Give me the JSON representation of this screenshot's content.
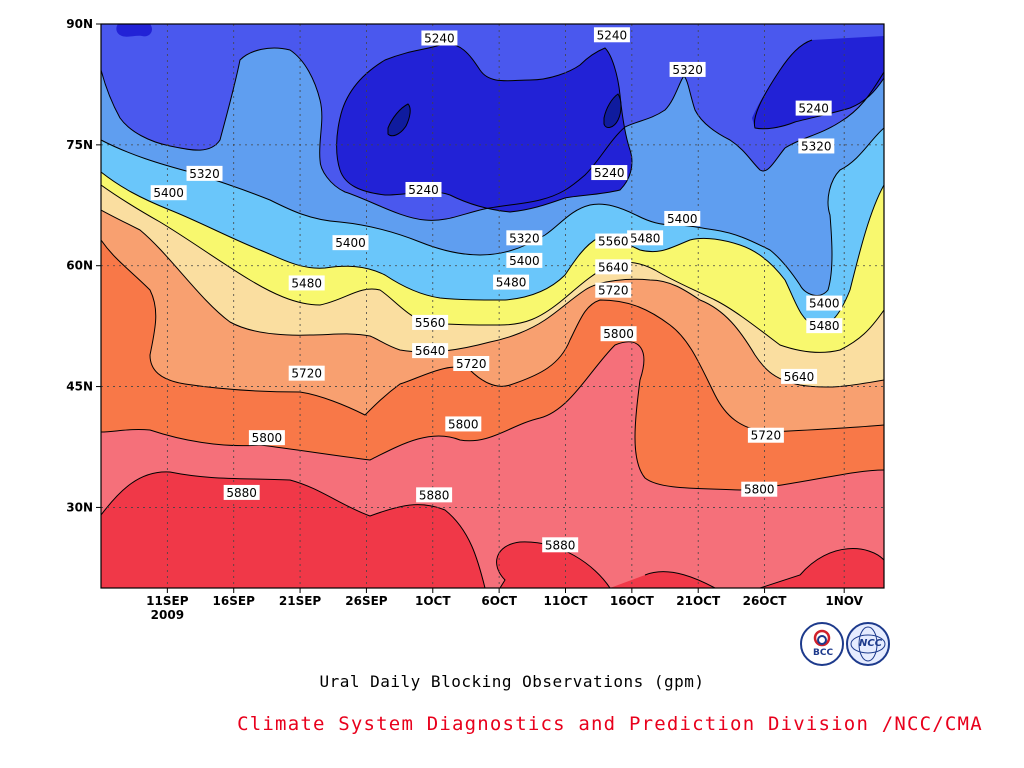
{
  "subtitle": "Ural Daily Blocking Observations (gpm)",
  "credit": "Climate System Diagnostics and Prediction Division /NCC/CMA",
  "logos": {
    "left_text": "BCC",
    "right_text": "NCC"
  },
  "chart_data": {
    "type": "heatmap",
    "title": "",
    "xlabel": "",
    "ylabel": "",
    "x_range_day": [
      0,
      59
    ],
    "y_range_lat": [
      20,
      90
    ],
    "x_ticks": [
      {
        "day": 5,
        "label": "11SEP",
        "sub": "2009"
      },
      {
        "day": 10,
        "label": "16SEP"
      },
      {
        "day": 15,
        "label": "21SEP"
      },
      {
        "day": 20,
        "label": "26SEP"
      },
      {
        "day": 25,
        "label": "1OCT"
      },
      {
        "day": 30,
        "label": "6OCT"
      },
      {
        "day": 35,
        "label": "11OCT"
      },
      {
        "day": 40,
        "label": "16OCT"
      },
      {
        "day": 45,
        "label": "21OCT"
      },
      {
        "day": 50,
        "label": "26OCT"
      },
      {
        "day": 56,
        "label": "1NOV"
      }
    ],
    "y_ticks": [
      {
        "lat": 30,
        "label": "30N"
      },
      {
        "lat": 45,
        "label": "45N"
      },
      {
        "lat": 60,
        "label": "60N"
      },
      {
        "lat": 75,
        "label": "75N"
      },
      {
        "lat": 90,
        "label": "90N"
      }
    ],
    "grid": true,
    "levels": [
      5160,
      5240,
      5320,
      5400,
      5480,
      5560,
      5640,
      5720,
      5800,
      5880
    ],
    "colors": [
      "#0f1b9e",
      "#2222d6",
      "#4a58ee",
      "#5f9ef0",
      "#6ac6fa",
      "#f8f86e",
      "#fadea0",
      "#f8a070",
      "#f87848",
      "#f5707a",
      "#f03848"
    ],
    "contour_labels": [
      {
        "value": "5240",
        "day": 25.5,
        "lat": 88.2
      },
      {
        "value": "5240",
        "day": 38.5,
        "lat": 88.6
      },
      {
        "value": "5320",
        "day": 44.2,
        "lat": 84.3
      },
      {
        "value": "5240",
        "day": 53.7,
        "lat": 79.5
      },
      {
        "value": "5320",
        "day": 7.8,
        "lat": 71.4
      },
      {
        "value": "5400",
        "day": 5.1,
        "lat": 69.0
      },
      {
        "value": "5240",
        "day": 24.3,
        "lat": 69.4
      },
      {
        "value": "5240",
        "day": 38.3,
        "lat": 71.5
      },
      {
        "value": "5320",
        "day": 53.9,
        "lat": 74.8
      },
      {
        "value": "5400",
        "day": 43.8,
        "lat": 65.8
      },
      {
        "value": "5400",
        "day": 18.8,
        "lat": 62.8
      },
      {
        "value": "5320",
        "day": 31.9,
        "lat": 63.4
      },
      {
        "value": "5480",
        "day": 41.0,
        "lat": 63.4
      },
      {
        "value": "5560",
        "day": 38.6,
        "lat": 63.0
      },
      {
        "value": "5400",
        "day": 31.9,
        "lat": 60.6
      },
      {
        "value": "5640",
        "day": 38.6,
        "lat": 59.8
      },
      {
        "value": "5480",
        "day": 15.5,
        "lat": 57.8
      },
      {
        "value": "5480",
        "day": 30.9,
        "lat": 57.9
      },
      {
        "value": "5720",
        "day": 38.6,
        "lat": 56.9
      },
      {
        "value": "5400",
        "day": 54.5,
        "lat": 55.3
      },
      {
        "value": "5560",
        "day": 24.8,
        "lat": 52.9
      },
      {
        "value": "5480",
        "day": 54.5,
        "lat": 52.5
      },
      {
        "value": "5800",
        "day": 39.0,
        "lat": 51.5
      },
      {
        "value": "5640",
        "day": 24.8,
        "lat": 49.4
      },
      {
        "value": "5720",
        "day": 27.9,
        "lat": 47.8
      },
      {
        "value": "5720",
        "day": 15.5,
        "lat": 46.6
      },
      {
        "value": "5640",
        "day": 52.6,
        "lat": 46.2
      },
      {
        "value": "5800",
        "day": 27.3,
        "lat": 40.3
      },
      {
        "value": "5800",
        "day": 12.5,
        "lat": 38.6
      },
      {
        "value": "5720",
        "day": 50.1,
        "lat": 38.9
      },
      {
        "value": "5880",
        "day": 10.6,
        "lat": 31.8
      },
      {
        "value": "5880",
        "day": 25.1,
        "lat": 31.5
      },
      {
        "value": "5800",
        "day": 49.6,
        "lat": 32.2
      },
      {
        "value": "5880",
        "day": 34.6,
        "lat": 25.3
      }
    ]
  }
}
